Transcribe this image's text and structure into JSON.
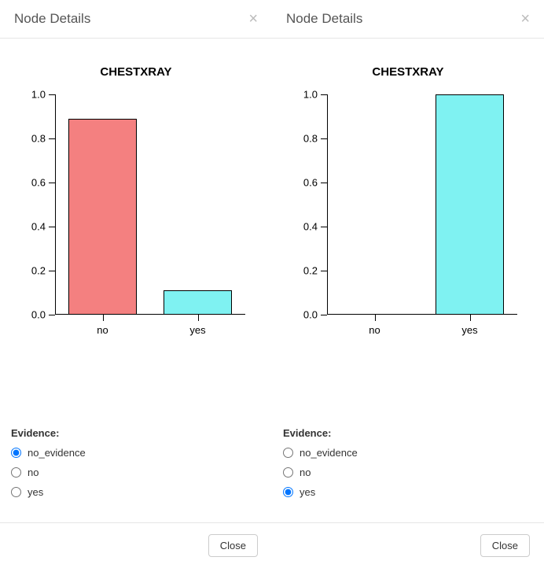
{
  "panels": [
    {
      "header_title": "Node Details",
      "close_x": "×",
      "chart": {
        "type": "bar",
        "title": "CHESTXRAY",
        "title_fontsize": 15,
        "categories": [
          "no",
          "yes"
        ],
        "values": [
          0.89,
          0.11
        ],
        "bar_colors": [
          "#f48080",
          "#7ff2f2"
        ],
        "bar_border_color": "#000000",
        "ylim": [
          0.0,
          1.0
        ],
        "ytick_step": 0.2,
        "ytick_labels": [
          "0.0",
          "0.2",
          "0.4",
          "0.6",
          "0.8",
          "1.0"
        ],
        "axis_color": "#000000",
        "label_fontsize": 13,
        "background_color": "#ffffff",
        "bar_width": 0.72
      },
      "evidence": {
        "label": "Evidence:",
        "options": [
          "no_evidence",
          "no",
          "yes"
        ],
        "selected": "no_evidence"
      },
      "footer_close": "Close"
    },
    {
      "header_title": "Node Details",
      "close_x": "×",
      "chart": {
        "type": "bar",
        "title": "CHESTXRAY",
        "title_fontsize": 15,
        "categories": [
          "no",
          "yes"
        ],
        "values": [
          0.0,
          1.0
        ],
        "bar_colors": [
          "#f48080",
          "#7ff2f2"
        ],
        "bar_border_color": "#000000",
        "ylim": [
          0.0,
          1.0
        ],
        "ytick_step": 0.2,
        "ytick_labels": [
          "0.0",
          "0.2",
          "0.4",
          "0.6",
          "0.8",
          "1.0"
        ],
        "axis_color": "#000000",
        "label_fontsize": 13,
        "background_color": "#ffffff",
        "bar_width": 0.72
      },
      "evidence": {
        "label": "Evidence:",
        "options": [
          "no_evidence",
          "no",
          "yes"
        ],
        "selected": "yes"
      },
      "footer_close": "Close"
    }
  ]
}
